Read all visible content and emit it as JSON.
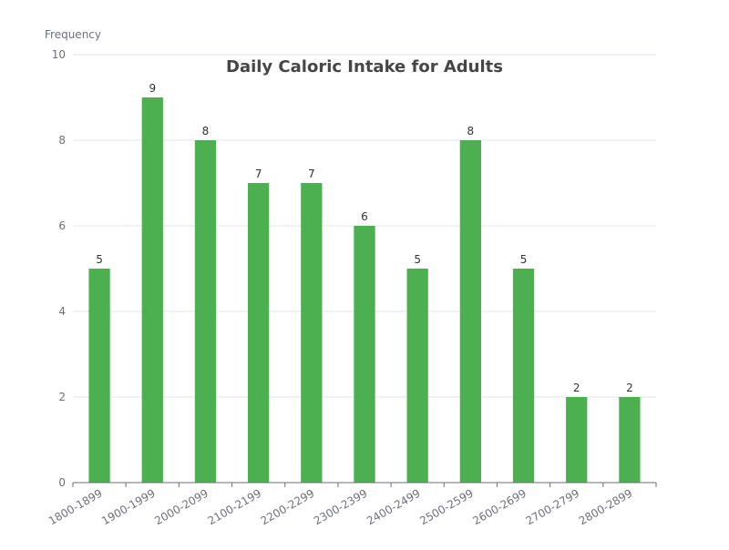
{
  "chart_data": {
    "type": "bar",
    "title": "Daily Caloric Intake for Adults",
    "xlabel": "",
    "ylabel": "Frequency",
    "categories": [
      "1800-1899",
      "1900-1999",
      "2000-2099",
      "2100-2199",
      "2200-2299",
      "2300-2399",
      "2400-2499",
      "2500-2599",
      "2600-2699",
      "2700-2799",
      "2800-2899"
    ],
    "values": [
      5,
      9,
      8,
      7,
      7,
      6,
      5,
      8,
      5,
      2,
      2
    ],
    "ylim": [
      0,
      10
    ],
    "yticks": [
      0,
      2,
      4,
      6,
      8,
      10
    ],
    "grid": true,
    "bar_color": "#4caf50",
    "show_data_labels": true
  }
}
